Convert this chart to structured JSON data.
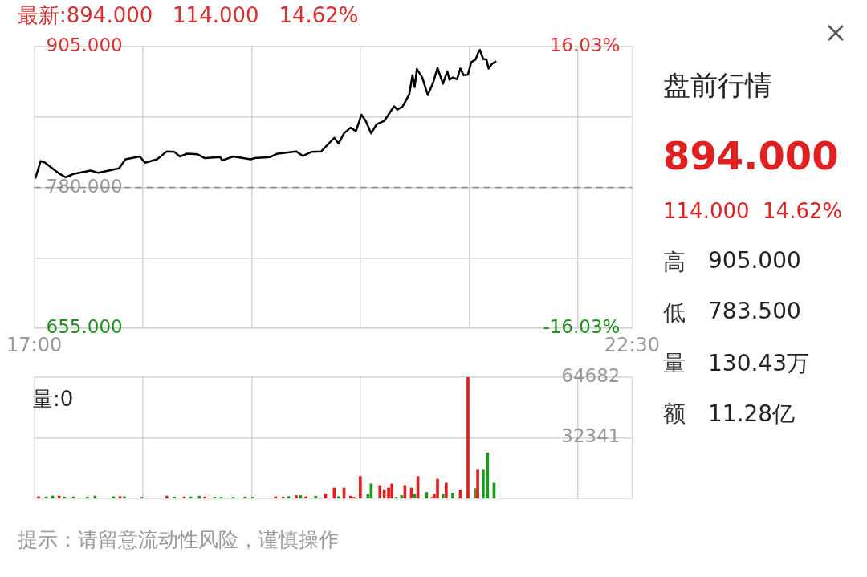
{
  "chart_data": [
    {
      "type": "line",
      "title": "最新:894.000   114.000   14.62%",
      "xlim": [
        17,
        22.5
      ],
      "xticks": [
        {
          "value": 17,
          "label": "17:00"
        },
        {
          "value": 18,
          "label": null
        },
        {
          "value": 19,
          "label": null
        },
        {
          "value": 20,
          "label": null
        },
        {
          "value": 21,
          "label": null
        },
        {
          "value": 22,
          "label": null
        },
        {
          "value": 22.5,
          "label": "22:30"
        }
      ],
      "ylim": [
        655,
        905
      ],
      "yticks": [
        {
          "value": 655,
          "label": "655.000"
        },
        {
          "value": 717.5,
          "label": null
        },
        {
          "value": 780,
          "label": "780.000"
        },
        {
          "value": 842.5,
          "label": null
        },
        {
          "value": 905,
          "label": "905.000"
        }
      ],
      "y2lim": [
        -16.03,
        16.03
      ],
      "y2ticks": [
        {
          "value": -16.03,
          "label": "-16.03%"
        },
        {
          "value": 16.03,
          "label": "16.03%"
        }
      ],
      "grid": true,
      "legend": false,
      "marker": "none",
      "line_style": "solid",
      "ref_lines": [
        {
          "axis": "y",
          "value": 780,
          "color": "#888888",
          "line_style": "dashed"
        }
      ],
      "series": [
        {
          "color": "#000000",
          "x": [
            17.01,
            17.06,
            17.1,
            17.22,
            17.29,
            17.36,
            17.52,
            17.59,
            17.78,
            17.84,
            17.97,
            18.02,
            18.13,
            18.22,
            18.29,
            18.34,
            18.41,
            18.5,
            18.57,
            18.71,
            18.73,
            18.83,
            18.99,
            19.03,
            19.17,
            19.24,
            19.41,
            19.47,
            19.55,
            19.64,
            19.69,
            19.76,
            19.8,
            19.85,
            19.91,
            19.96,
            20.01,
            20.05,
            20.1,
            20.15,
            20.22,
            20.31,
            20.34,
            20.39,
            20.45,
            20.48,
            20.5,
            20.52,
            20.57,
            20.62,
            20.67,
            20.71,
            20.76,
            20.8,
            20.82,
            20.85,
            20.89,
            20.92,
            20.95,
            20.99,
            21.02,
            21.06,
            21.09,
            21.1,
            21.13,
            21.16,
            21.18,
            21.21,
            21.25
          ],
          "values": [
            788,
            803.5,
            802,
            793,
            789,
            792,
            795,
            793,
            797,
            805,
            807.5,
            802,
            805,
            812,
            811.5,
            807.5,
            810,
            809.5,
            806,
            807,
            804,
            807.5,
            805,
            806,
            807,
            810,
            812,
            808,
            811.5,
            812,
            817,
            824,
            819,
            828,
            833,
            830,
            844.5,
            839,
            828,
            836,
            839,
            852,
            849,
            852,
            862.5,
            879.5,
            869,
            885,
            877.5,
            862,
            873,
            886,
            872,
            883,
            875.5,
            877.5,
            876,
            885.5,
            879.5,
            880,
            891,
            893.5,
            901,
            902,
            894,
            893.5,
            885.5,
            889.5,
            892
          ]
        }
      ]
    },
    {
      "type": "bar",
      "title": "量:0",
      "xlim": [
        17,
        22.5
      ],
      "xticks": [
        {
          "value": 17,
          "label": null
        },
        {
          "value": 18,
          "label": null
        },
        {
          "value": 19,
          "label": null
        },
        {
          "value": 20,
          "label": null
        },
        {
          "value": 21,
          "label": null
        },
        {
          "value": 22,
          "label": null
        },
        {
          "value": 22.5,
          "label": null
        }
      ],
      "ylim": [
        0,
        64682
      ],
      "yticks": [
        32341,
        64682
      ],
      "tick_labels": "y",
      "grid": true,
      "legend": false,
      "annotations": [
        "提示：请留意流动性风险，谨慎操作"
      ],
      "x": [
        17.04,
        17.11,
        17.17,
        17.23,
        17.28,
        17.36,
        17.49,
        17.56,
        17.73,
        17.79,
        17.83,
        17.99,
        18.22,
        18.29,
        18.38,
        18.44,
        18.52,
        18.57,
        18.66,
        18.72,
        18.83,
        18.94,
        19.01,
        19.22,
        19.29,
        19.34,
        19.41,
        19.45,
        19.5,
        19.59,
        19.68,
        19.76,
        19.8,
        19.85,
        19.91,
        19.94,
        20.0,
        20.07,
        20.1,
        20.18,
        20.22,
        20.26,
        20.29,
        20.33,
        20.38,
        20.41,
        20.47,
        20.5,
        20.53,
        20.61,
        20.66,
        20.68,
        20.71,
        20.76,
        20.79,
        20.85,
        20.92,
        20.99,
        21.06,
        21.08,
        21.13,
        21.17,
        21.23
      ],
      "values": [
        900,
        800,
        1200,
        1300,
        700,
        800,
        700,
        1300,
        900,
        1000,
        900,
        600,
        1300,
        700,
        800,
        800,
        1200,
        800,
        700,
        600,
        600,
        800,
        600,
        900,
        700,
        1000,
        1500,
        1500,
        900,
        1200,
        2500,
        5600,
        1000,
        5600,
        1200,
        600,
        11700,
        2000,
        7800,
        6900,
        4600,
        5600,
        7800,
        600,
        1500,
        6900,
        5600,
        2200,
        11700,
        3200,
        600,
        2200,
        10300,
        2200,
        8200,
        2900,
        4600,
        64682,
        5300,
        15100,
        15100,
        24300,
        8200
      ],
      "colors": [
        "#e02020",
        "#1a9a1a",
        "#1a9a1a",
        "#e02020",
        "#1a9a1a",
        "#1a9a1a",
        "#1a9a1a",
        "#1a9a1a",
        "#1a9a1a",
        "#e02020",
        "#1a9a1a",
        "#1a9a1a",
        "#e02020",
        "#1a9a1a",
        "#e02020",
        "#1a9a1a",
        "#1a9a1a",
        "#e02020",
        "#1a9a1a",
        "#1a9a1a",
        "#1a9a1a",
        "#1a9a1a",
        "#1a9a1a",
        "#e02020",
        "#e02020",
        "#1a9a1a",
        "#e02020",
        "#1a9a1a",
        "#e02020",
        "#1a9a1a",
        "#e02020",
        "#e02020",
        "#1a9a1a",
        "#e02020",
        "#e02020",
        "#e02020",
        "#e02020",
        "#1a9a1a",
        "#1a9a1a",
        "#e02020",
        "#e02020",
        "#e02020",
        "#e02020",
        "#1a9a1a",
        "#1a9a1a",
        "#e02020",
        "#e02020",
        "#1a9a1a",
        "#e02020",
        "#1a9a1a",
        "#e02020",
        "#e02020",
        "#e02020",
        "#1a9a1a",
        "#e02020",
        "#1a9a1a",
        "#e02020",
        "#e02020",
        "#6b8e23",
        "#e02020",
        "#1a9a1a",
        "#1a9a1a",
        "#1a9a1a"
      ]
    },
    {
      "type": "other",
      "title": "盘前行情",
      "annotations": [
        "894.000",
        "114.000  14.62%",
        "高",
        "905.000",
        "低",
        "783.500",
        "量",
        "130.43万",
        "额",
        "11.28亿"
      ]
    }
  ]
}
